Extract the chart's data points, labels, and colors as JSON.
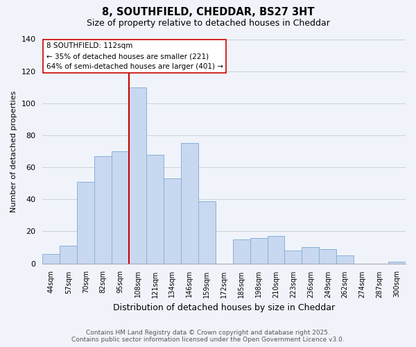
{
  "title": "8, SOUTHFIELD, CHEDDAR, BS27 3HT",
  "subtitle": "Size of property relative to detached houses in Cheddar",
  "xlabel": "Distribution of detached houses by size in Cheddar",
  "ylabel": "Number of detached properties",
  "bar_labels": [
    "44sqm",
    "57sqm",
    "70sqm",
    "82sqm",
    "95sqm",
    "108sqm",
    "121sqm",
    "134sqm",
    "146sqm",
    "159sqm",
    "172sqm",
    "185sqm",
    "198sqm",
    "210sqm",
    "223sqm",
    "236sqm",
    "249sqm",
    "262sqm",
    "274sqm",
    "287sqm",
    "300sqm"
  ],
  "bar_values": [
    6,
    11,
    51,
    67,
    70,
    110,
    68,
    53,
    75,
    39,
    0,
    15,
    16,
    17,
    8,
    10,
    9,
    5,
    0,
    0,
    1
  ],
  "bar_color": "#c8d8f0",
  "bar_edge_color": "#8ab0d8",
  "grid_color": "#c8d0dc",
  "vline_color": "#cc0000",
  "vline_index": 5,
  "annotation_title": "8 SOUTHFIELD: 112sqm",
  "annotation_line1": "← 35% of detached houses are smaller (221)",
  "annotation_line2": "64% of semi-detached houses are larger (401) →",
  "annotation_box_color": "#ffffff",
  "annotation_box_edge": "#cc0000",
  "ylim": [
    0,
    140
  ],
  "yticks": [
    0,
    20,
    40,
    60,
    80,
    100,
    120,
    140
  ],
  "footnote1": "Contains HM Land Registry data © Crown copyright and database right 2025.",
  "footnote2": "Contains public sector information licensed under the Open Government Licence v3.0.",
  "background_color": "#f0f4fa"
}
